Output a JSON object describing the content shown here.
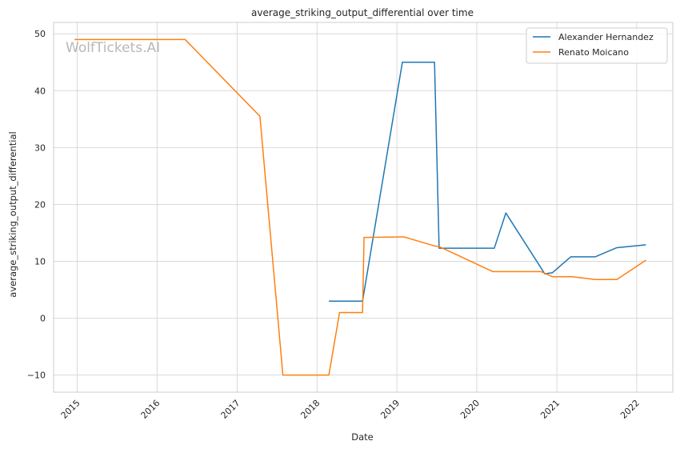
{
  "chart_data": {
    "type": "line",
    "title": "average_striking_output_differential over time",
    "xlabel": "Date",
    "ylabel": "average_striking_output_differential",
    "watermark": "WolfTickets.AI",
    "grid": true,
    "legend_position": "top-right",
    "xlim": [
      "2014-09-15",
      "2022-06-15"
    ],
    "ylim": [
      -13,
      52
    ],
    "x_ticks": [
      "2015",
      "2016",
      "2017",
      "2018",
      "2019",
      "2020",
      "2021",
      "2022"
    ],
    "y_ticks": [
      -10,
      0,
      10,
      20,
      30,
      40,
      50
    ],
    "series": [
      {
        "name": "Alexander Hernandez",
        "color": "#1f77b4",
        "points": [
          {
            "x": "2018-02-24",
            "y": 3
          },
          {
            "x": "2018-07-28",
            "y": 3
          },
          {
            "x": "2019-01-26",
            "y": 45
          },
          {
            "x": "2019-06-22",
            "y": 45
          },
          {
            "x": "2019-07-13",
            "y": 12.3
          },
          {
            "x": "2020-03-21",
            "y": 12.3
          },
          {
            "x": "2020-05-13",
            "y": 18.5
          },
          {
            "x": "2020-11-07",
            "y": 7.8
          },
          {
            "x": "2020-12-12",
            "y": 8
          },
          {
            "x": "2021-03-06",
            "y": 10.8
          },
          {
            "x": "2021-06-26",
            "y": 10.8
          },
          {
            "x": "2021-10-02",
            "y": 12.4
          },
          {
            "x": "2022-02-12",
            "y": 12.9
          }
        ]
      },
      {
        "name": "Renato Moicano",
        "color": "#ff7f0e",
        "points": [
          {
            "x": "2014-12-20",
            "y": 49
          },
          {
            "x": "2016-05-08",
            "y": 49
          },
          {
            "x": "2017-04-15",
            "y": 35.5
          },
          {
            "x": "2017-07-29",
            "y": -10
          },
          {
            "x": "2018-02-24",
            "y": -10
          },
          {
            "x": "2018-04-14",
            "y": 1
          },
          {
            "x": "2018-07-28",
            "y": 1
          },
          {
            "x": "2018-08-04",
            "y": 14.2
          },
          {
            "x": "2019-02-02",
            "y": 14.3
          },
          {
            "x": "2019-06-22",
            "y": 12.7
          },
          {
            "x": "2019-07-13",
            "y": 12.6
          },
          {
            "x": "2020-03-14",
            "y": 8.2
          },
          {
            "x": "2020-10-20",
            "y": 8.2
          },
          {
            "x": "2020-12-12",
            "y": 7.3
          },
          {
            "x": "2021-03-13",
            "y": 7.3
          },
          {
            "x": "2021-06-26",
            "y": 6.8
          },
          {
            "x": "2021-10-02",
            "y": 6.8
          },
          {
            "x": "2022-02-12",
            "y": 10.2
          }
        ]
      }
    ]
  }
}
